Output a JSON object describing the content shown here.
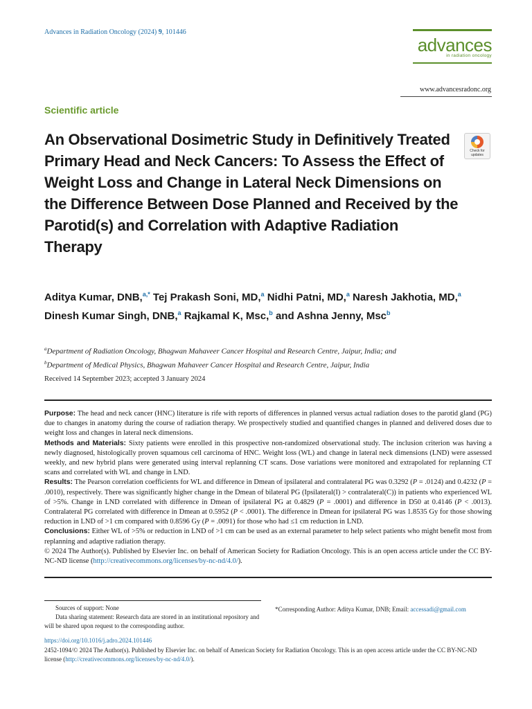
{
  "header": {
    "journal_citation": "Advances in Radiation Oncology (2024)",
    "volume": "9",
    "article_number": ", 101446",
    "logo_word": "advances",
    "logo_sub": "in radiation oncology",
    "website": "www.advancesradonc.org"
  },
  "article": {
    "section": "Scientific article",
    "title": "An Observational Dosimetric Study in Definitively Treated Primary Head and Neck Cancers: To Assess the Effect of Weight Loss and Change in Lateral Neck Dimensions on the Difference Between Dose Planned and Received by the Parotid(s) and Correlation with Adaptive Radiation Therapy",
    "check_badge": "Check for updates",
    "authors": [
      {
        "name": "Aditya Kumar, DNB,",
        "sup": "a,*",
        "sep": " "
      },
      {
        "name": "Tej Prakash Soni, MD,",
        "sup": "a",
        "sep": " "
      },
      {
        "name": "Nidhi Patni, MD,",
        "sup": "a",
        "sep": " "
      },
      {
        "name": "Naresh Jakhotia, MD,",
        "sup": "a",
        "sep": " "
      },
      {
        "name": "Dinesh Kumar Singh, DNB,",
        "sup": "a",
        "sep": " "
      },
      {
        "name": "Rajkamal K, Msc,",
        "sup": "b",
        "sep": " and "
      },
      {
        "name": "Ashna Jenny, Msc",
        "sup": "b",
        "sep": ""
      }
    ],
    "affiliations": [
      {
        "sup": "a",
        "text": "Department of Radiation Oncology, Bhagwan Mahaveer Cancer Hospital and Research Centre, Jaipur, India; and"
      },
      {
        "sup": "b",
        "text": "Department of Medical Physics, Bhagwan Mahaveer Cancer Hospital and Research Centre, Jaipur, India"
      }
    ],
    "received": "Received 14 September 2023; accepted 3 January 2024"
  },
  "abstract": {
    "purpose_label": "Purpose:",
    "purpose": " The head and neck cancer (HNC) literature is rife with reports of differences in planned versus actual radiation doses to the parotid gland (PG) due to changes in anatomy during the course of radiation therapy. We prospectively studied and quantified changes in planned and delivered doses due to weight loss and changes in lateral neck dimensions.",
    "methods_label": "Methods and Materials:",
    "methods": " Sixty patients were enrolled in this prospective non-randomized observational study. The inclusion criterion was having a newly diagnosed, histologically proven squamous cell carcinoma of HNC. Weight loss (WL) and change in lateral neck dimensions (LND) were assessed weekly, and new hybrid plans were generated using interval replanning CT scans. Dose variations were monitored and extrapolated for replanning CT scans and correlated with WL and change in LND.",
    "results_label": "Results:",
    "results": " The Pearson correlation coefficients for WL and difference in Dmean of ipsilateral and contralateral PG was 0.3292 (P = .0124) and 0.4232 (P = .0010), respectively. There was significantly higher change in the Dmean of bilateral PG (Ipsilateral(I) > contralateral(C)) in patients who experienced WL of >5%. Change in LND correlated with difference in Dmean of ipsilateral PG at 0.4829 (P = .0001) and difference in D50 at 0.4146 (P < .0013). Contralateral PG correlated with difference in Dmean at 0.5952 (P < .0001). The difference in Dmean for ipsilateral PG was 1.8535 Gy for those showing reduction in LND of >1 cm compared with 0.8596 Gy (P = .0091) for those who had ≤1 cm reduction in LND.",
    "conclusions_label": "Conclusions:",
    "conclusions": " Either WL of >5% or reduction in LND of >1 cm can be used as an external parameter to help select patients who might benefit most from replanning and adaptive radiation therapy.",
    "copyright": "© 2024 The Author(s). Published by Elsevier Inc. on behalf of American Society for Radiation Oncology. This is an open access article under the CC BY-NC-ND license (",
    "license_url": "http://creativecommons.org/licenses/by-nc-nd/4.0/",
    "copyright_end": ")."
  },
  "footnotes": {
    "support": "Sources of support: None",
    "data_sharing": "Data sharing statement: Research data are stored in an institutional repository and will be shared upon request to the corresponding author.",
    "corresponding": "*Corresponding Author: Aditya Kumar, DNB; Email: ",
    "email": "accessadi@gmail.com"
  },
  "bottom": {
    "doi": "https://doi.org/10.1016/j.adro.2024.101446",
    "issn": "2452-1094/© 2024 The Author(s). Published by Elsevier Inc. on behalf of American Society for Radiation Oncology. This is an open access article under the CC BY-NC-ND license (",
    "license_url": "http://creativecommons.org/licenses/by-nc-nd/4.0/",
    "issn_end": ")."
  },
  "colors": {
    "link_blue": "#1f6fa8",
    "brand_green": "#5b8f2b",
    "section_green": "#6a9a2e"
  }
}
